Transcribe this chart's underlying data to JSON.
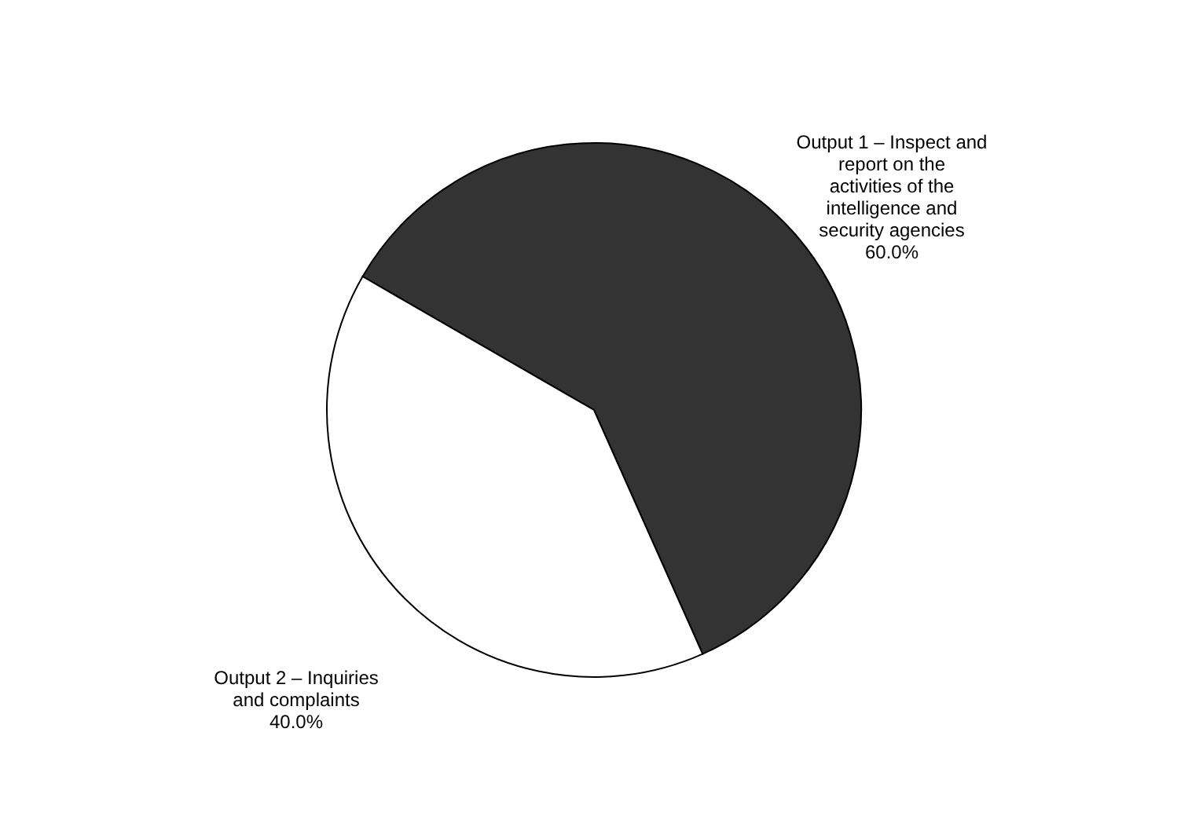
{
  "chart_data": {
    "type": "pie",
    "categories": [
      "Output 1 – Inspect and report on the activities of the intelligence and security agencies",
      "Output 2 – Inquiries and complaints"
    ],
    "values": [
      60.0,
      40.0
    ],
    "value_labels": [
      "60.0%",
      "40.0%"
    ],
    "colors": [
      "#333333",
      "#ffffff"
    ],
    "legend": false
  }
}
